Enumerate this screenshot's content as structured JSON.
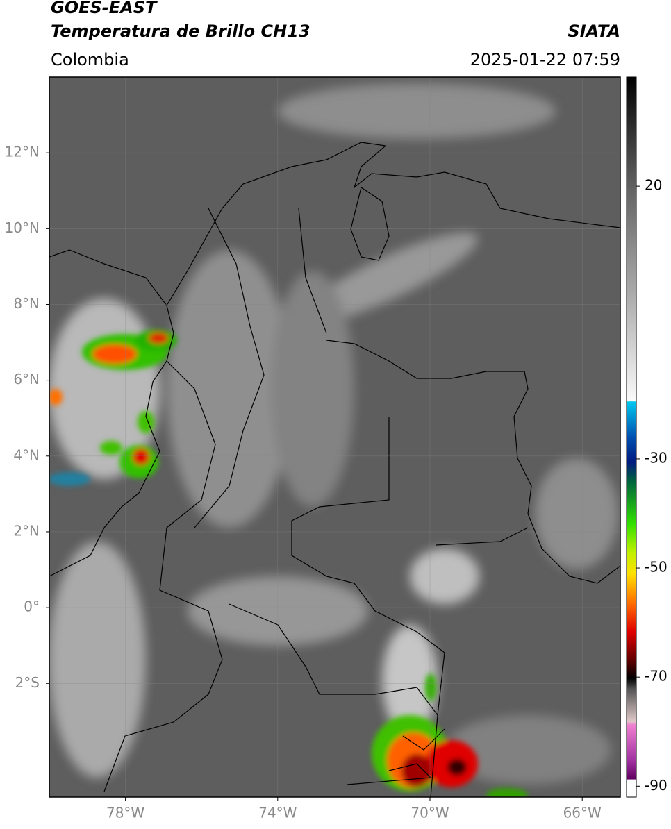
{
  "header": {
    "title": "GOES-EAST",
    "subtitle": "Temperatura de Brillo CH13",
    "region": "Colombia",
    "source": "SIATA",
    "timestamp": "2025-01-22 07:59"
  },
  "map": {
    "lonlim": [
      -80,
      -65
    ],
    "latlim": [
      -5,
      14
    ],
    "lat_ticks": [
      {
        "value": 12,
        "label": "12°N"
      },
      {
        "value": 10,
        "label": "10°N"
      },
      {
        "value": 8,
        "label": "8°N"
      },
      {
        "value": 6,
        "label": "6°N"
      },
      {
        "value": 4,
        "label": "4°N"
      },
      {
        "value": 2,
        "label": "2°N"
      },
      {
        "value": 0,
        "label": "0°"
      },
      {
        "value": -2,
        "label": "2°S"
      }
    ],
    "lon_ticks": [
      {
        "value": -78,
        "label": "78°W"
      },
      {
        "value": -74,
        "label": "74°W"
      },
      {
        "value": -70,
        "label": "70°W"
      },
      {
        "value": -66,
        "label": "66°W"
      }
    ]
  },
  "colorbar": {
    "range": [
      -92,
      40
    ],
    "ticks": [
      20,
      -30,
      -50,
      -70,
      -90
    ]
  }
}
